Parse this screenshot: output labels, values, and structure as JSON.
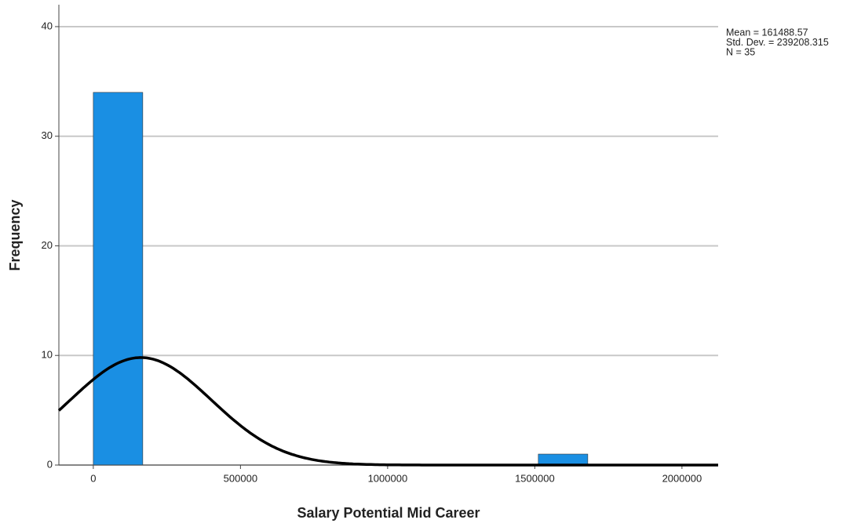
{
  "chart_data": {
    "type": "histogram",
    "x_label": "Salary Potential Mid Career",
    "y_label": "Frequency",
    "bins": [
      0,
      168000,
      336000,
      504000,
      672000,
      840000,
      1008000,
      1176000,
      1344000,
      1512000,
      1680000
    ],
    "values": [
      34,
      0,
      0,
      0,
      0,
      0,
      0,
      0,
      0,
      1
    ],
    "color": "#1a8fe3",
    "xlim": [
      -117000,
      2123000
    ],
    "xticks": [
      0,
      500000,
      1000000,
      1500000,
      2000000
    ],
    "ylim": [
      0,
      42
    ],
    "yticks": [
      0,
      10,
      20,
      30,
      40
    ],
    "grid": true,
    "normal_curve": true,
    "annotations": [
      {
        "value": 161488.57,
        "label": "Mean = 161488.57"
      },
      {
        "value": 239208.315,
        "label": "Std. Dev. = 239208.315"
      },
      {
        "value": 35,
        "label": "N = 35"
      }
    ]
  }
}
